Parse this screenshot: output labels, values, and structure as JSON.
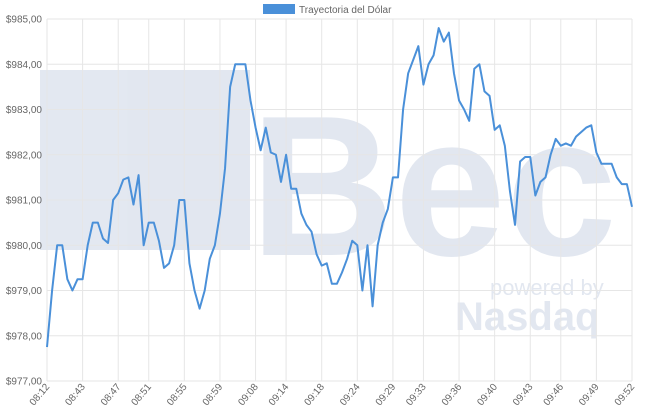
{
  "chart_data": {
    "type": "line",
    "watermark": {
      "brand": "Bec",
      "powered": "powered by",
      "nasdaq": "Nasdaq"
    },
    "categories": [
      "08:12",
      null,
      null,
      null,
      null,
      null,
      null,
      "08:43",
      null,
      null,
      null,
      null,
      null,
      null,
      "08:47",
      null,
      null,
      null,
      null,
      null,
      "08:51",
      null,
      null,
      null,
      null,
      null,
      null,
      "08:55",
      null,
      null,
      null,
      null,
      null,
      null,
      "08:59",
      null,
      null,
      null,
      null,
      null,
      null,
      "09:08",
      null,
      null,
      null,
      null,
      null,
      "09:14",
      null,
      null,
      null,
      null,
      null,
      null,
      "09:18",
      null,
      null,
      null,
      null,
      null,
      null,
      "09:24",
      null,
      null,
      null,
      null,
      null,
      null,
      "09:29",
      null,
      null,
      null,
      null,
      null,
      "09:33",
      null,
      null,
      null,
      null,
      null,
      null,
      "09:36",
      null,
      null,
      null,
      null,
      null,
      null,
      "09:40",
      null,
      null,
      null,
      null,
      null,
      null,
      "09:43",
      null,
      null,
      null,
      null,
      null,
      "09:46",
      null,
      null,
      null,
      null,
      null,
      null,
      "09:49",
      null,
      null,
      null,
      null,
      null,
      null,
      "09:52"
    ],
    "series": [
      {
        "name": "Trayectoria del Dólar",
        "color": "#4a90d9",
        "values": [
          977.75,
          979.0,
          980.0,
          980.0,
          979.25,
          979.0,
          979.25,
          979.25,
          980.0,
          980.5,
          980.5,
          980.15,
          980.05,
          981.0,
          981.15,
          981.45,
          981.5,
          980.9,
          981.55,
          980.0,
          980.5,
          980.5,
          980.1,
          979.5,
          979.6,
          980.0,
          981.0,
          981.0,
          979.6,
          979.0,
          978.6,
          979.0,
          979.7,
          980.0,
          980.7,
          981.7,
          983.5,
          984.0,
          984.0,
          984.0,
          983.2,
          982.6,
          982.1,
          982.6,
          982.05,
          982.0,
          981.4,
          982.0,
          981.25,
          981.25,
          980.7,
          980.45,
          980.3,
          979.8,
          979.55,
          979.6,
          979.15,
          979.15,
          979.4,
          979.7,
          980.1,
          980.0,
          979.0,
          980.0,
          978.65,
          980.0,
          980.5,
          980.8,
          981.5,
          981.5,
          983.0,
          983.8,
          984.1,
          984.4,
          983.55,
          984.0,
          984.2,
          984.8,
          984.5,
          984.7,
          983.8,
          983.2,
          983.0,
          982.75,
          983.9,
          984.0,
          983.4,
          983.3,
          982.55,
          982.65,
          982.2,
          981.2,
          980.45,
          981.85,
          981.95,
          981.95,
          981.1,
          981.4,
          981.5,
          982.0,
          982.35,
          982.2,
          982.25,
          982.2,
          982.4,
          982.5,
          982.6,
          982.65,
          982.05,
          981.8,
          981.8,
          981.8,
          981.5,
          981.35,
          981.35,
          980.85
        ]
      }
    ],
    "ylim": [
      977,
      985
    ],
    "yticks": [
      {
        "value": 977,
        "label": "$977,00"
      },
      {
        "value": 978,
        "label": "$978,00"
      },
      {
        "value": 979,
        "label": "$979,00"
      },
      {
        "value": 980,
        "label": "$980,00"
      },
      {
        "value": 981,
        "label": "$981,00"
      },
      {
        "value": 982,
        "label": "$982,00"
      },
      {
        "value": 983,
        "label": "$983,00"
      },
      {
        "value": 984,
        "label": "$984,00"
      },
      {
        "value": 985,
        "label": "$985,00"
      }
    ],
    "grid": true,
    "legend": "top"
  }
}
